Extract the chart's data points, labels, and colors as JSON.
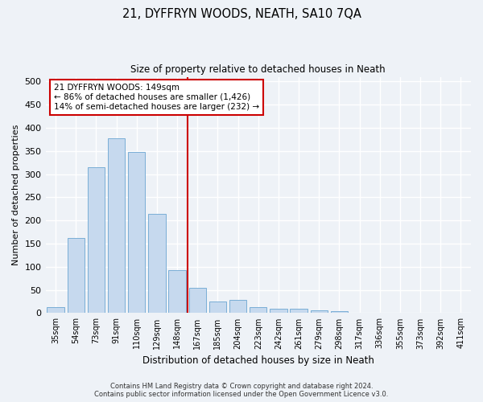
{
  "title1": "21, DYFFRYN WOODS, NEATH, SA10 7QA",
  "title2": "Size of property relative to detached houses in Neath",
  "xlabel": "Distribution of detached houses by size in Neath",
  "ylabel": "Number of detached properties",
  "categories": [
    "35sqm",
    "54sqm",
    "73sqm",
    "91sqm",
    "110sqm",
    "129sqm",
    "148sqm",
    "167sqm",
    "185sqm",
    "204sqm",
    "223sqm",
    "242sqm",
    "261sqm",
    "279sqm",
    "298sqm",
    "317sqm",
    "336sqm",
    "355sqm",
    "373sqm",
    "392sqm",
    "411sqm"
  ],
  "values": [
    13,
    163,
    315,
    378,
    347,
    215,
    93,
    55,
    25,
    28,
    13,
    10,
    9,
    6,
    4,
    1,
    0,
    1,
    0,
    0,
    1
  ],
  "bar_color": "#c6d9ee",
  "bar_edge_color": "#7aaed6",
  "vline_x": 6.5,
  "vline_color": "#cc0000",
  "annotation_line1": "21 DYFFRYN WOODS: 149sqm",
  "annotation_line2": "← 86% of detached houses are smaller (1,426)",
  "annotation_line3": "14% of semi-detached houses are larger (232) →",
  "annotation_box_color": "#cc0000",
  "ylim": [
    0,
    510
  ],
  "yticks": [
    0,
    50,
    100,
    150,
    200,
    250,
    300,
    350,
    400,
    450,
    500
  ],
  "footer1": "Contains HM Land Registry data © Crown copyright and database right 2024.",
  "footer2": "Contains public sector information licensed under the Open Government Licence v3.0.",
  "bg_color": "#eef2f7",
  "plot_bg_color": "#eef2f7",
  "grid_color": "#ffffff"
}
